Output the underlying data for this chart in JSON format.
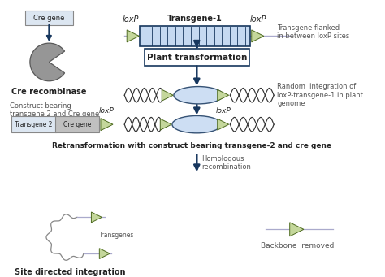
{
  "bg_color": "#ffffff",
  "transgene_fill": "#c5d9f1",
  "transgene_border": "#17375e",
  "loxp_fill": "#c4d79b",
  "loxp_border": "#4e6b20",
  "box_fill": "#ffffff",
  "box_border": "#17375e",
  "cre_fill": "#969696",
  "cre_border": "#595959",
  "cre_gene_box_fill": "#dce6f1",
  "cre_gene_box_border": "#888888",
  "dna_color": "#333333",
  "arrow_color": "#17375e",
  "text_color": "#222222",
  "note_color": "#555555",
  "texts": {
    "loxP_left": "loxP",
    "loxP_right": "loxP",
    "transgene1": "Transgene-1",
    "plant_transform": "Plant transformation",
    "flanked_note": "Transgene flanked\nin between loxP sites",
    "random_note": "Random  integration of\nloxP-transgene-1 in plant\ngenome",
    "construct_note": "Construct bearing\ntransgene 2 and Cre gene",
    "retransform": "Retransformation with construct bearing transgene-2 and cre gene",
    "homologous": "Homologous\nrecombination",
    "site_directed": "Site directed integration",
    "backbone_removed": "Backbone  removed",
    "transgenes_label": "Transgenes",
    "cre_recombinase": "Cre recombinase",
    "cre_gene": "Cre gene",
    "transgene2": "Transgene 2",
    "cre_gene2": "Cre gene",
    "loxP_construct": "loxP",
    "loxP_genome": "loxP"
  }
}
